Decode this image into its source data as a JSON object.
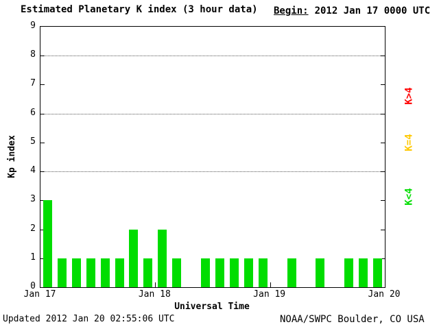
{
  "title": "Estimated Planetary K index (3 hour data)",
  "begin": {
    "label": "Begin:",
    "value": "2012 Jan 17 0000 UTC"
  },
  "footer": {
    "updated": "Updated 2012 Jan 20 02:55:06 UTC",
    "source": "NOAA/SWPC Boulder, CO USA"
  },
  "side_labels": [
    {
      "id": "above4",
      "label": "K>4",
      "color": "#ff0000"
    },
    {
      "id": "equal4",
      "label": "K=4",
      "color": "#ffc800"
    },
    {
      "id": "below4",
      "label": "K<4",
      "color": "#00dd00"
    }
  ],
  "chart_data": {
    "type": "bar",
    "title": "Estimated Planetary K index (3 hour data)",
    "xlabel": "Universal Time",
    "ylabel": "Kp index",
    "ylim": [
      0,
      9
    ],
    "yticks": [
      0,
      1,
      2,
      3,
      4,
      5,
      6,
      7,
      8,
      9
    ],
    "gridlines_at": [
      4,
      6,
      8
    ],
    "grid_style": "dotted horizontal lines at Kp 4, 6 and 8",
    "x_tick_labels": [
      "Jan 17",
      "Jan 18",
      "Jan 19",
      "Jan 20"
    ],
    "bin_hours": 3,
    "bars_per_day": 8,
    "bar_colors": {
      "below4": "#00dd00",
      "equal4": "#ffc800",
      "above4": "#ff0000"
    },
    "values": [
      3,
      1,
      1,
      1,
      1,
      1,
      2,
      1,
      2,
      1,
      0,
      1,
      1,
      1,
      1,
      1,
      0,
      1,
      0,
      1,
      0,
      1,
      1,
      1
    ],
    "legend_position": "right side, rotated labels"
  }
}
